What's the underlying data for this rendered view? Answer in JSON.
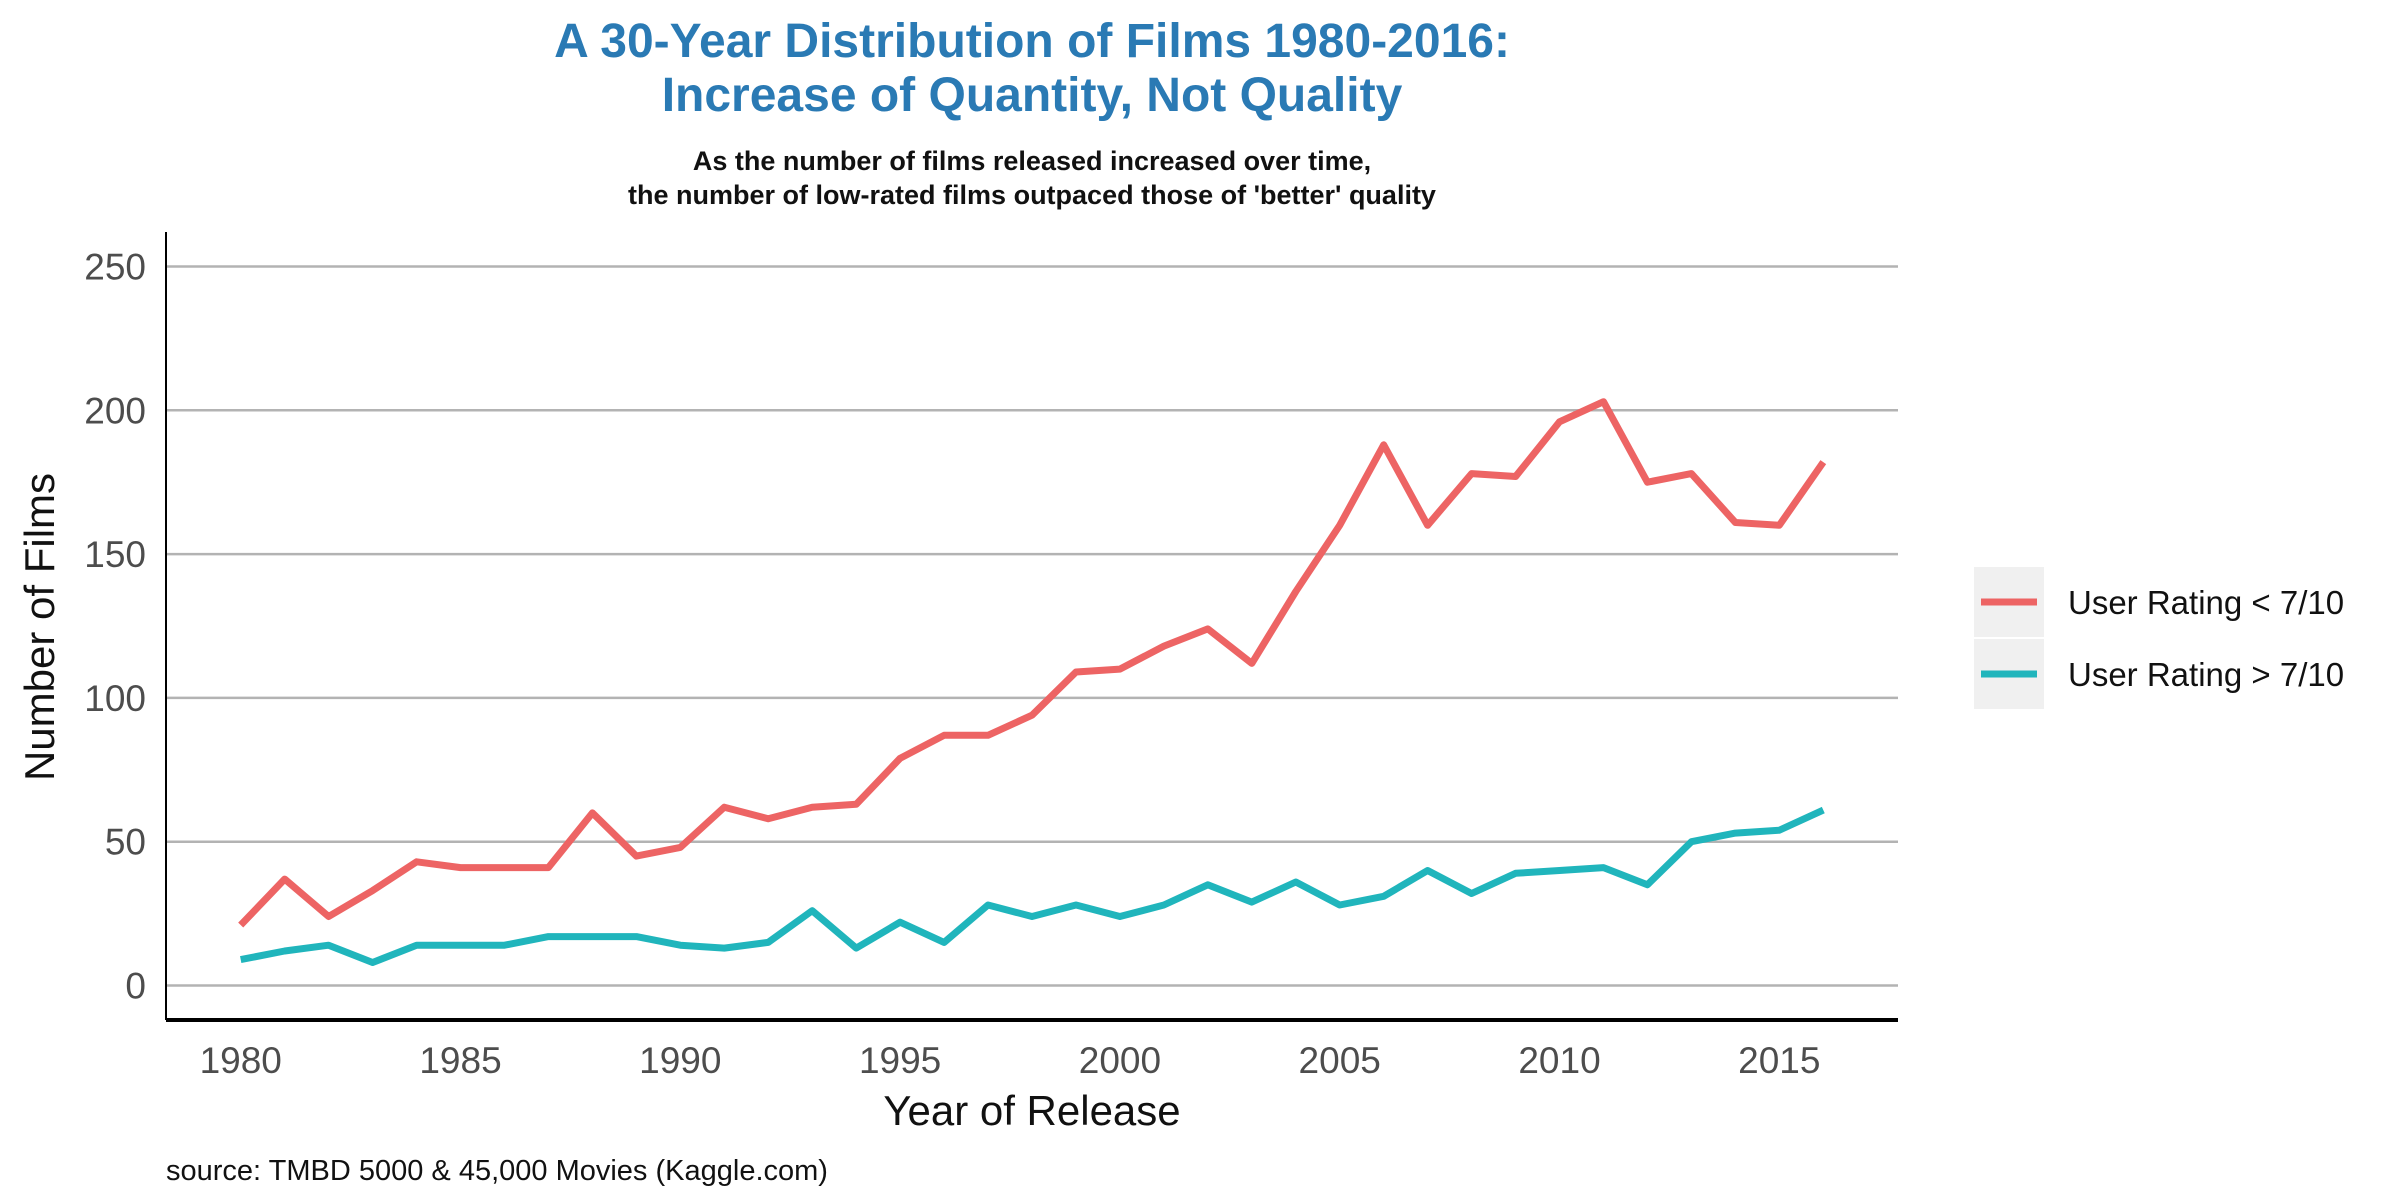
{
  "chart_data": {
    "type": "line",
    "title_line1": "A 30-Year Distribution of Films 1980-2016:",
    "title_line2": "Increase of Quantity, Not Quality",
    "subtitle_line1": "As the number of films released increased over time,",
    "subtitle_line2": "the number of low-rated films outpaced those of 'better' quality",
    "xlabel": "Year of Release",
    "ylabel": "Number of Films",
    "caption": "source: TMBD 5000 & 45,000 Movies (Kaggle.com)",
    "xlim": [
      1978.3,
      2017.7
    ],
    "ylim": [
      -12,
      262
    ],
    "x_ticks": [
      1980,
      1985,
      1990,
      1995,
      2000,
      2005,
      2010,
      2015
    ],
    "y_ticks": [
      0,
      50,
      100,
      150,
      200,
      250
    ],
    "grid": "horizontal",
    "legend_position": "right",
    "x": [
      1980,
      1981,
      1982,
      1983,
      1984,
      1985,
      1986,
      1987,
      1988,
      1989,
      1990,
      1991,
      1992,
      1993,
      1994,
      1995,
      1996,
      1997,
      1998,
      1999,
      2000,
      2001,
      2002,
      2003,
      2004,
      2005,
      2006,
      2007,
      2008,
      2009,
      2010,
      2011,
      2012,
      2013,
      2014,
      2015,
      2016
    ],
    "series": [
      {
        "name": "User Rating < 7/10",
        "color": "#ed6464",
        "values": [
          21,
          37,
          24,
          33,
          43,
          41,
          41,
          41,
          60,
          45,
          48,
          62,
          58,
          62,
          63,
          79,
          87,
          87,
          94,
          109,
          110,
          118,
          124,
          112,
          137,
          160,
          188,
          160,
          178,
          177,
          196,
          203,
          175,
          178,
          161,
          160,
          182
        ]
      },
      {
        "name": "User Rating > 7/10",
        "color": "#20b5bc",
        "values": [
          9,
          12,
          14,
          8,
          14,
          14,
          14,
          17,
          17,
          17,
          14,
          13,
          15,
          26,
          13,
          22,
          15,
          28,
          24,
          28,
          24,
          28,
          35,
          29,
          36,
          28,
          31,
          40,
          32,
          39,
          40,
          41,
          35,
          50,
          53,
          54,
          61
        ]
      }
    ]
  },
  "colors": {
    "title": "#2a7ab4",
    "gridline": "#b3b3b3",
    "axis": "#000000",
    "legend_key_bg": "#f0f0f0"
  }
}
